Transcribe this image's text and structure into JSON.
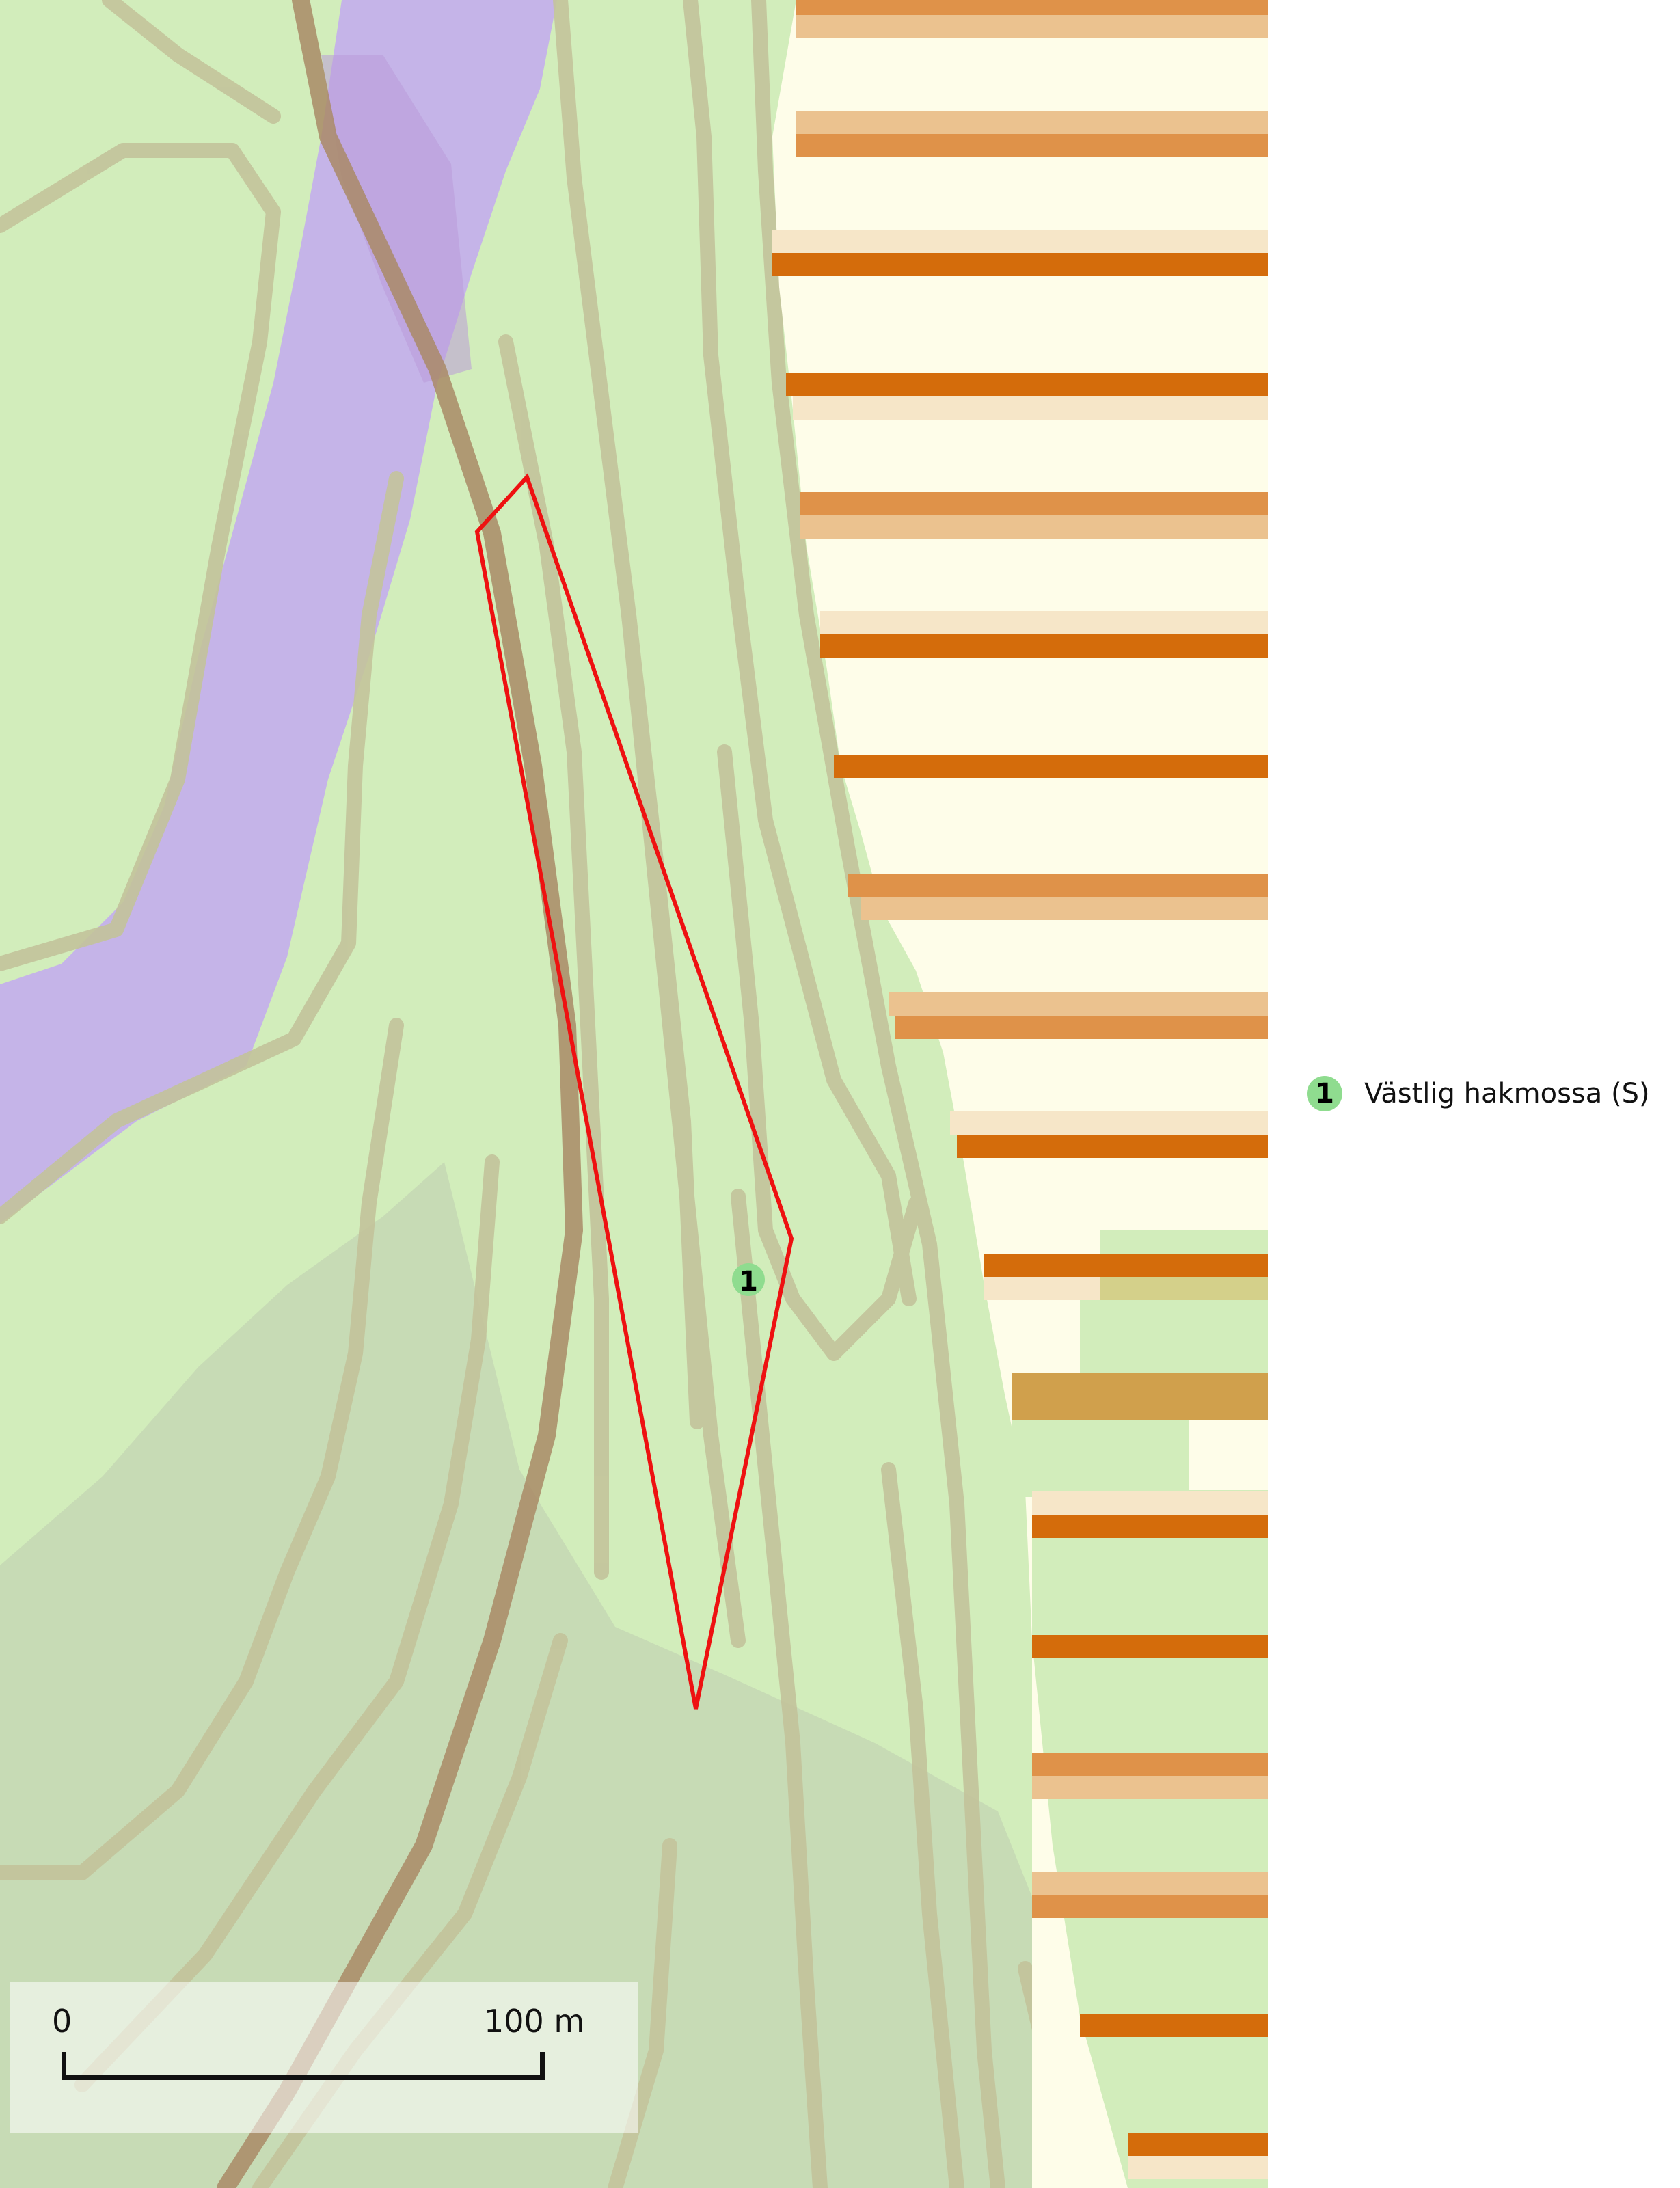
{
  "map": {
    "colors": {
      "background": "#d2edbb",
      "contour": "#c3c39b",
      "contour_dark": "#a98a66",
      "wetland": "#c5b4e8",
      "wetland_dark": "#b99ad8",
      "shaded": "#c7dbb5",
      "field": "#fefde9",
      "stripe_dark": "#d46c0b",
      "stripe_mid": "#df9249",
      "stripe_light": "#ebc28f",
      "stripe_pale": "#f6e6c8",
      "polygon": "#ee1111",
      "marker": "#8fdc8f"
    },
    "observation": {
      "marker_label": "1"
    }
  },
  "legend": {
    "items": [
      {
        "marker": "1",
        "label": "Västlig hakmossa (S)",
        "color": "#8fdc8f"
      }
    ]
  },
  "scalebar": {
    "start_label": "0",
    "end_label": "100 m"
  }
}
